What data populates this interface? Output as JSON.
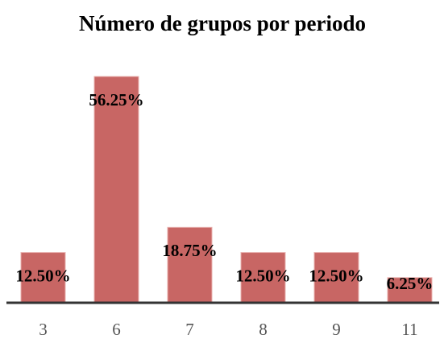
{
  "chart_data": {
    "type": "bar",
    "title": "Número de grupos por periodo",
    "categories": [
      "3",
      "6",
      "7",
      "8",
      "9",
      "11"
    ],
    "values": [
      12.5,
      56.25,
      18.75,
      12.5,
      12.5,
      6.25
    ],
    "value_labels": [
      "12.50%",
      "56.25%",
      "18.75%",
      "12.50%",
      "12.50%",
      "6.25%"
    ],
    "color": "#c86664"
  }
}
